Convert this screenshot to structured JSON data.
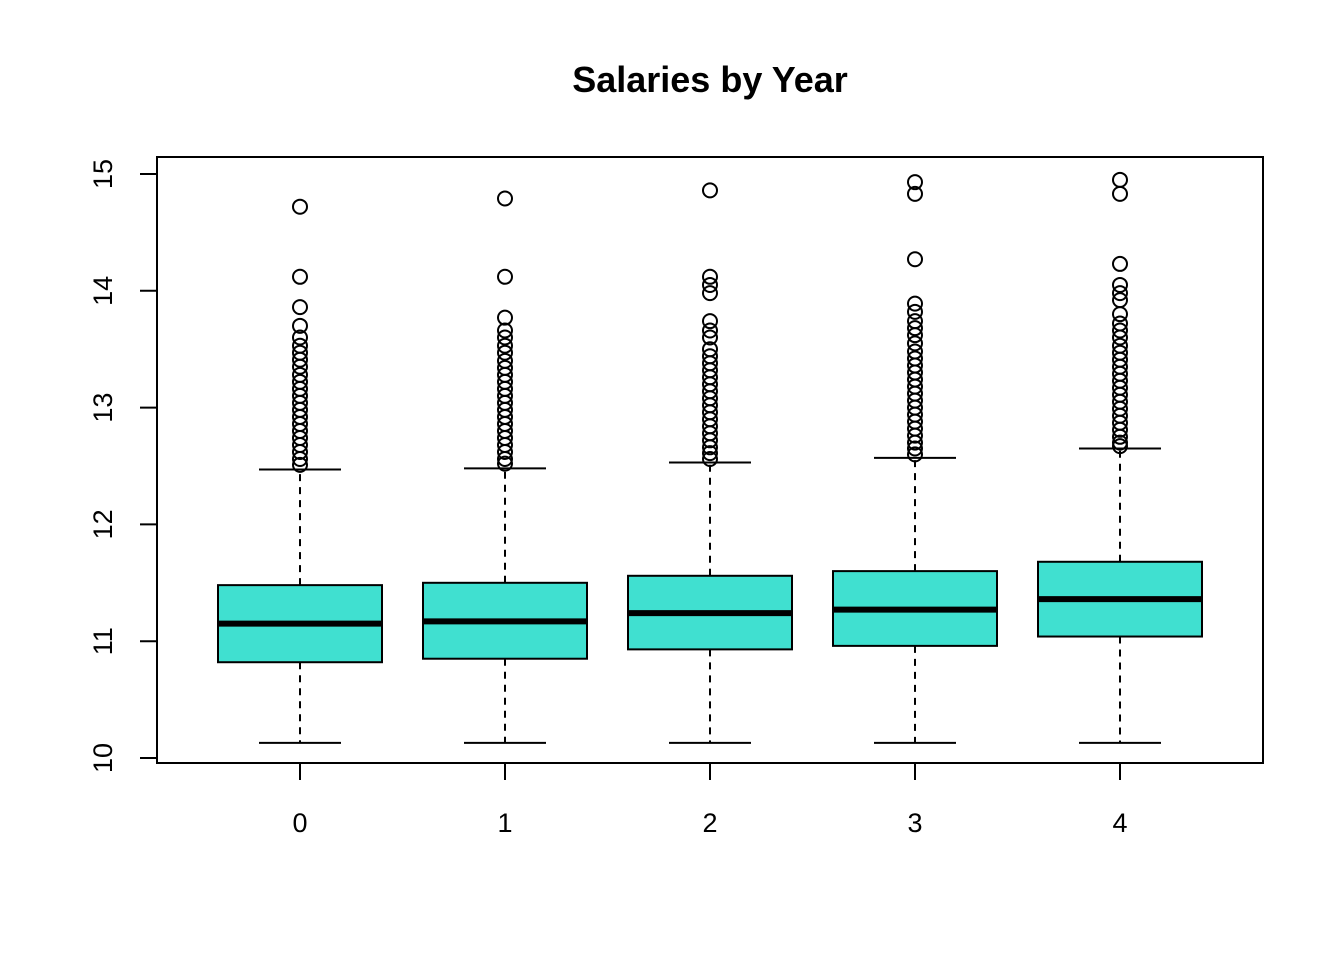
{
  "chart_data": {
    "type": "boxplot",
    "title": "Salaries by Year",
    "xlabel": "",
    "ylabel": "",
    "categories": [
      "0",
      "1",
      "2",
      "3",
      "4"
    ],
    "yticks": [
      10,
      11,
      12,
      13,
      14,
      15
    ],
    "ylim": [
      9.95,
      15.14
    ],
    "grid": false,
    "box_color": "#40E0D0",
    "boxes": [
      {
        "category": "0",
        "whisker_low": 10.13,
        "q1": 10.82,
        "median": 11.15,
        "q3": 11.48,
        "whisker_high": 12.47,
        "outliers": [
          14.72,
          14.12,
          13.86,
          13.7,
          13.6,
          13.53,
          13.47,
          13.41,
          13.35,
          13.28,
          13.22,
          13.16,
          13.1,
          13.04,
          12.98,
          12.92,
          12.86,
          12.8,
          12.74,
          12.68,
          12.62,
          12.56,
          12.51
        ]
      },
      {
        "category": "1",
        "whisker_low": 10.13,
        "q1": 10.85,
        "median": 11.17,
        "q3": 11.5,
        "whisker_high": 12.48,
        "outliers": [
          14.79,
          14.12,
          13.77,
          13.66,
          13.6,
          13.53,
          13.47,
          13.4,
          13.34,
          13.28,
          13.22,
          13.16,
          13.1,
          13.04,
          12.98,
          12.92,
          12.86,
          12.8,
          12.74,
          12.68,
          12.62,
          12.56,
          12.52
        ]
      },
      {
        "category": "2",
        "whisker_low": 10.13,
        "q1": 10.93,
        "median": 11.24,
        "q3": 11.56,
        "whisker_high": 12.53,
        "outliers": [
          14.86,
          14.12,
          14.05,
          13.98,
          13.74,
          13.66,
          13.6,
          13.5,
          13.44,
          13.38,
          13.32,
          13.26,
          13.2,
          13.14,
          13.08,
          13.02,
          12.96,
          12.9,
          12.84,
          12.78,
          12.72,
          12.66,
          12.61,
          12.56
        ]
      },
      {
        "category": "3",
        "whisker_low": 10.13,
        "q1": 10.96,
        "median": 11.27,
        "q3": 11.6,
        "whisker_high": 12.57,
        "outliers": [
          14.93,
          14.83,
          14.27,
          13.89,
          13.82,
          13.74,
          13.68,
          13.62,
          13.55,
          13.48,
          13.42,
          13.36,
          13.3,
          13.24,
          13.18,
          13.12,
          13.06,
          13.0,
          12.94,
          12.88,
          12.82,
          12.76,
          12.7,
          12.65,
          12.6
        ]
      },
      {
        "category": "4",
        "whisker_low": 10.13,
        "q1": 11.04,
        "median": 11.36,
        "q3": 11.68,
        "whisker_high": 12.65,
        "outliers": [
          14.95,
          14.83,
          14.23,
          14.05,
          13.98,
          13.92,
          13.8,
          13.72,
          13.66,
          13.6,
          13.53,
          13.47,
          13.41,
          13.35,
          13.29,
          13.23,
          13.17,
          13.11,
          13.05,
          12.99,
          12.93,
          12.87,
          12.81,
          12.75,
          12.7,
          12.67
        ]
      }
    ]
  }
}
